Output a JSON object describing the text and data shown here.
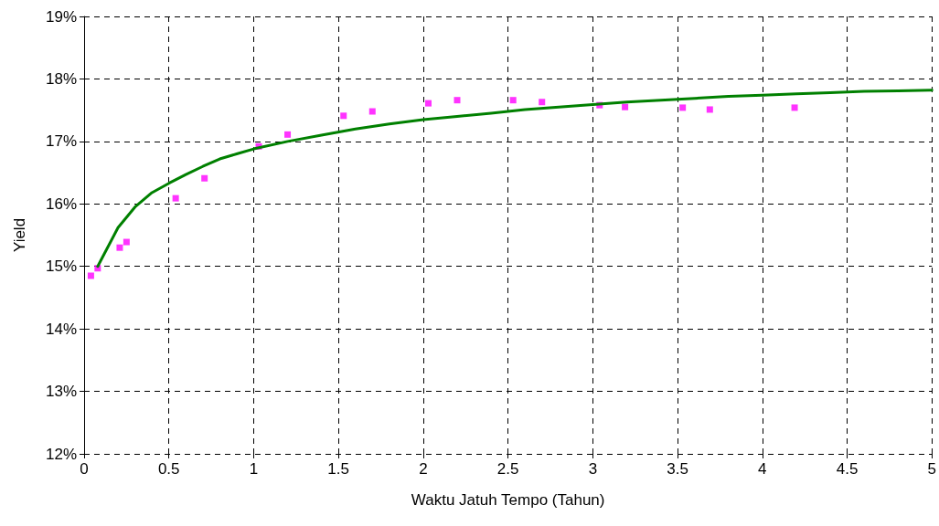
{
  "chart_data": {
    "type": "scatter",
    "xlabel": "Waktu Jatuh Tempo (Tahun)",
    "ylabel": "Yield",
    "xlim": [
      0,
      5
    ],
    "xticks": [
      0,
      0.5,
      1,
      1.5,
      2,
      2.5,
      3,
      3.5,
      4,
      4.5,
      5
    ],
    "ylim": [
      12,
      19
    ],
    "yticks": [
      {
        "value": 12,
        "label": "12%"
      },
      {
        "value": 13,
        "label": "13%"
      },
      {
        "value": 14,
        "label": "14%"
      },
      {
        "value": 15,
        "label": "15%"
      },
      {
        "value": 16,
        "label": "16%"
      },
      {
        "value": 17,
        "label": "17%"
      },
      {
        "value": 18,
        "label": "18%"
      },
      {
        "value": 19,
        "label": "19%"
      }
    ],
    "grid": true,
    "series": [
      {
        "color": "#ff00ff",
        "marker": "square",
        "x": [
          0.04,
          0.08,
          0.21,
          0.25,
          0.54,
          0.71,
          1.03,
          1.2,
          1.53,
          1.7,
          2.03,
          2.2,
          2.53,
          2.7,
          3.04,
          3.19,
          3.53,
          3.69,
          4.19
        ],
        "values": [
          14.85,
          14.97,
          15.3,
          15.39,
          16.09,
          16.41,
          16.92,
          17.11,
          17.41,
          17.48,
          17.61,
          17.66,
          17.66,
          17.63,
          17.58,
          17.55,
          17.54,
          17.51,
          17.54
        ]
      },
      {
        "type": "line",
        "color": "#008000",
        "marker": "none",
        "line_style": "solid",
        "x": [
          0.08,
          0.2,
          0.3,
          0.4,
          0.5,
          0.6,
          0.7,
          0.8,
          0.9,
          1.0,
          1.2,
          1.4,
          1.6,
          1.8,
          2.0,
          2.2,
          2.4,
          2.6,
          2.8,
          3.0,
          3.2,
          3.4,
          3.6,
          3.8,
          4.0,
          4.2,
          4.4,
          4.6,
          4.8,
          5.0
        ],
        "values": [
          15.0,
          15.62,
          15.95,
          16.18,
          16.33,
          16.47,
          16.6,
          16.72,
          16.8,
          16.88,
          17.0,
          17.1,
          17.2,
          17.28,
          17.35,
          17.4,
          17.45,
          17.51,
          17.55,
          17.59,
          17.63,
          17.66,
          17.69,
          17.72,
          17.74,
          17.76,
          17.78,
          17.8,
          17.81,
          17.82
        ]
      }
    ]
  }
}
